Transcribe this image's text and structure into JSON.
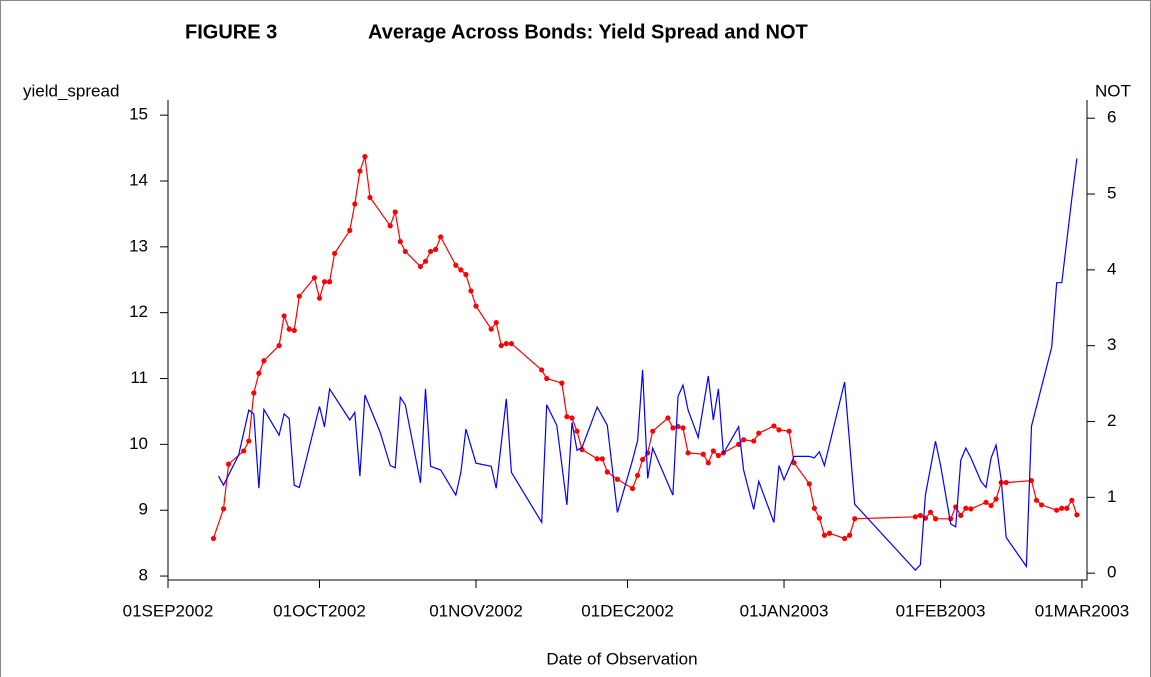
{
  "chart_data": {
    "type": "line",
    "title": "FIGURE 3",
    "subtitle": "Average Across Bonds: Yield Spread and NOT",
    "y_label": "yield_spread",
    "y2_label": "NOT",
    "x_label": "Date of Observation",
    "xlim": [
      "2002-09-01",
      "2003-03-02"
    ],
    "xticks": [
      {
        "value": "2002-09-01",
        "label": "01SEP2002"
      },
      {
        "value": "2002-10-01",
        "label": "01OCT2002"
      },
      {
        "value": "2002-11-01",
        "label": "01NOV2002"
      },
      {
        "value": "2002-12-01",
        "label": "01DEC2002"
      },
      {
        "value": "2003-01-01",
        "label": "01JAN2003"
      },
      {
        "value": "2003-02-01",
        "label": "01FEB2003"
      },
      {
        "value": "2003-03-01",
        "label": "01MAR2003"
      }
    ],
    "ylim": [
      7.94,
      15.23
    ],
    "yticks": [
      8,
      9,
      10,
      11,
      12,
      13,
      14,
      15
    ],
    "y2lim": [
      -0.09,
      6.24
    ],
    "y2ticks": [
      0,
      1,
      2,
      3,
      4,
      5,
      6
    ],
    "series": [
      {
        "name": "yield_spread",
        "color": "#ff0000",
        "markers": true,
        "x": [
          "2002-09-10",
          "2002-09-12",
          "2002-09-13",
          "2002-09-16",
          "2002-09-17",
          "2002-09-18",
          "2002-09-19",
          "2002-09-20",
          "2002-09-23",
          "2002-09-24",
          "2002-09-25",
          "2002-09-26",
          "2002-09-27",
          "2002-09-30",
          "2002-10-01",
          "2002-10-02",
          "2002-10-03",
          "2002-10-04",
          "2002-10-07",
          "2002-10-08",
          "2002-10-09",
          "2002-10-10",
          "2002-10-11",
          "2002-10-15",
          "2002-10-16",
          "2002-10-17",
          "2002-10-18",
          "2002-10-21",
          "2002-10-22",
          "2002-10-23",
          "2002-10-24",
          "2002-10-25",
          "2002-10-28",
          "2002-10-29",
          "2002-10-30",
          "2002-10-31",
          "2002-11-01",
          "2002-11-04",
          "2002-11-05",
          "2002-11-06",
          "2002-11-07",
          "2002-11-08",
          "2002-11-14",
          "2002-11-15",
          "2002-11-18",
          "2002-11-19",
          "2002-11-20",
          "2002-11-21",
          "2002-11-22",
          "2002-11-25",
          "2002-11-26",
          "2002-11-27",
          "2002-11-29",
          "2002-12-02",
          "2002-12-03",
          "2002-12-04",
          "2002-12-05",
          "2002-12-06",
          "2002-12-09",
          "2002-12-10",
          "2002-12-11",
          "2002-12-12",
          "2002-12-13",
          "2002-12-16",
          "2002-12-17",
          "2002-12-18",
          "2002-12-19",
          "2002-12-20",
          "2002-12-23",
          "2002-12-24",
          "2002-12-26",
          "2002-12-27",
          "2002-12-30",
          "2002-12-31",
          "2003-01-02",
          "2003-01-03",
          "2003-01-06",
          "2003-01-07",
          "2003-01-08",
          "2003-01-09",
          "2003-01-10",
          "2003-01-13",
          "2003-01-14",
          "2003-01-15",
          "2003-01-27",
          "2003-01-28",
          "2003-01-29",
          "2003-01-30",
          "2003-01-31",
          "2003-02-03",
          "2003-02-04",
          "2003-02-05",
          "2003-02-06",
          "2003-02-07",
          "2003-02-10",
          "2003-02-11",
          "2003-02-12",
          "2003-02-13",
          "2003-02-14",
          "2003-02-19",
          "2003-02-20",
          "2003-02-21",
          "2003-02-24",
          "2003-02-25",
          "2003-02-26",
          "2003-02-27",
          "2003-02-28"
        ],
        "values": [
          8.57,
          9.02,
          9.7,
          9.9,
          10.05,
          10.78,
          11.08,
          11.27,
          11.5,
          11.95,
          11.75,
          11.73,
          12.25,
          12.53,
          12.22,
          12.47,
          12.47,
          12.9,
          13.25,
          13.65,
          14.15,
          14.37,
          13.75,
          13.32,
          13.53,
          13.08,
          12.93,
          12.7,
          12.78,
          12.93,
          12.96,
          13.15,
          12.72,
          12.65,
          12.58,
          12.33,
          12.1,
          11.75,
          11.85,
          11.5,
          11.53,
          11.53,
          11.13,
          11.0,
          10.93,
          10.42,
          10.4,
          10.2,
          9.92,
          9.78,
          9.78,
          9.58,
          9.47,
          9.33,
          9.53,
          9.77,
          9.87,
          10.2,
          10.4,
          10.25,
          10.27,
          10.25,
          9.87,
          9.85,
          9.72,
          9.9,
          9.83,
          9.87,
          10.0,
          10.07,
          10.05,
          10.17,
          10.28,
          10.22,
          10.2,
          9.72,
          9.4,
          9.03,
          8.88,
          8.62,
          8.65,
          8.57,
          8.62,
          8.87,
          8.9,
          8.92,
          8.88,
          8.97,
          8.87,
          8.87,
          9.05,
          8.92,
          9.03,
          9.02,
          9.12,
          9.07,
          9.17,
          9.42,
          9.42,
          9.45,
          9.15,
          9.08,
          9.0,
          9.03,
          9.03,
          9.15,
          8.93
        ]
      },
      {
        "name": "NOT",
        "color": "#0000ff",
        "axis": "y2",
        "markers": false,
        "x": [
          "2002-09-11",
          "2002-09-12",
          "2002-09-15",
          "2002-09-17",
          "2002-09-18",
          "2002-09-19",
          "2002-09-20",
          "2002-09-23",
          "2002-09-24",
          "2002-09-25",
          "2002-09-26",
          "2002-09-27",
          "2002-10-01",
          "2002-10-02",
          "2002-10-03",
          "2002-10-07",
          "2002-10-08",
          "2002-10-09",
          "2002-10-10",
          "2002-10-13",
          "2002-10-15",
          "2002-10-16",
          "2002-10-17",
          "2002-10-18",
          "2002-10-21",
          "2002-10-22",
          "2002-10-23",
          "2002-10-25",
          "2002-10-28",
          "2002-10-29",
          "2002-10-30",
          "2002-11-01",
          "2002-11-04",
          "2002-11-05",
          "2002-11-07",
          "2002-11-08",
          "2002-11-14",
          "2002-11-15",
          "2002-11-17",
          "2002-11-19",
          "2002-11-20",
          "2002-11-21",
          "2002-11-22",
          "2002-11-25",
          "2002-11-27",
          "2002-11-29",
          "2002-12-02",
          "2002-12-03",
          "2002-12-04",
          "2002-12-05",
          "2002-12-06",
          "2002-12-10",
          "2002-12-11",
          "2002-12-12",
          "2002-12-13",
          "2002-12-15",
          "2002-12-17",
          "2002-12-18",
          "2002-12-19",
          "2002-12-20",
          "2002-12-23",
          "2002-12-24",
          "2002-12-26",
          "2002-12-27",
          "2002-12-30",
          "2002-12-31",
          "2003-01-01",
          "2003-01-03",
          "2003-01-06",
          "2003-01-07",
          "2003-01-08",
          "2003-01-09",
          "2003-01-13",
          "2003-01-15",
          "2003-01-27",
          "2003-01-28",
          "2003-01-29",
          "2003-01-31",
          "2003-02-01",
          "2003-02-03",
          "2003-02-04",
          "2003-02-05",
          "2003-02-06",
          "2003-02-07",
          "2003-02-09",
          "2003-02-10",
          "2003-02-11",
          "2003-02-12",
          "2003-02-13",
          "2003-02-14",
          "2003-02-18",
          "2003-02-19",
          "2003-02-23",
          "2003-02-24",
          "2003-02-25",
          "2003-02-27",
          "2003-02-28"
        ],
        "values": [
          1.28,
          1.16,
          1.56,
          2.15,
          2.1,
          1.12,
          2.16,
          1.82,
          2.1,
          2.04,
          1.16,
          1.13,
          2.2,
          1.93,
          2.43,
          2.02,
          2.12,
          1.28,
          2.35,
          1.86,
          1.42,
          1.39,
          2.32,
          2.22,
          1.19,
          2.43,
          1.41,
          1.36,
          1.03,
          1.33,
          1.9,
          1.45,
          1.41,
          1.12,
          2.3,
          1.33,
          0.67,
          2.22,
          1.95,
          0.9,
          1.99,
          1.62,
          1.66,
          2.19,
          1.95,
          0.8,
          1.49,
          1.75,
          2.68,
          1.25,
          1.65,
          1.03,
          2.33,
          2.48,
          2.15,
          1.79,
          2.6,
          2.02,
          2.43,
          1.58,
          1.93,
          1.36,
          0.84,
          1.21,
          0.67,
          1.42,
          1.23,
          1.54,
          1.54,
          1.52,
          1.6,
          1.42,
          2.52,
          0.91,
          0.04,
          0.11,
          1.03,
          1.74,
          1.42,
          0.65,
          0.61,
          1.49,
          1.65,
          1.52,
          1.21,
          1.13,
          1.52,
          1.69,
          1.23,
          0.47,
          0.09,
          1.94,
          2.98,
          3.83,
          3.83,
          4.95,
          5.47
        ]
      }
    ]
  }
}
